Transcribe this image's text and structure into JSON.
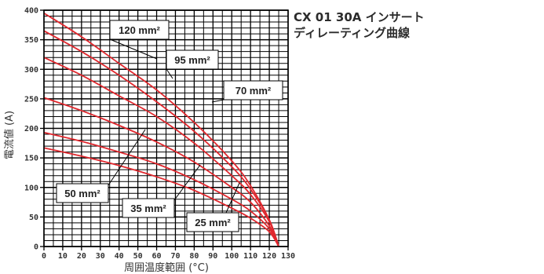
{
  "chart_data": {
    "type": "line",
    "title": [
      "CX 01 30A インサート",
      "ディレーティング曲線"
    ],
    "xlabel": "周囲温度範囲 (°C)",
    "ylabel": "電流値 (A)",
    "xlim": [
      0,
      130
    ],
    "ylim": [
      0,
      400
    ],
    "x_ticks": [
      0,
      10,
      20,
      30,
      40,
      50,
      60,
      70,
      80,
      90,
      100,
      110,
      120,
      130
    ],
    "y_ticks": [
      0,
      50,
      100,
      150,
      200,
      250,
      300,
      350,
      400
    ],
    "grid": true,
    "series": [
      {
        "name": "120 mm²",
        "x": [
          0,
          20,
          40,
          60,
          80,
          100,
          110,
          120,
          125
        ],
        "y": [
          395,
          355,
          310,
          265,
          210,
          145,
          103,
          45,
          0
        ]
      },
      {
        "name": "95 mm²",
        "x": [
          0,
          20,
          40,
          60,
          80,
          100,
          110,
          120,
          125
        ],
        "y": [
          365,
          330,
          290,
          245,
          195,
          135,
          97,
          45,
          0
        ]
      },
      {
        "name": "70 mm²",
        "x": [
          0,
          20,
          40,
          60,
          80,
          100,
          110,
          120,
          125
        ],
        "y": [
          320,
          290,
          255,
          220,
          175,
          120,
          88,
          42,
          0
        ]
      },
      {
        "name": "50 mm²",
        "x": [
          0,
          20,
          40,
          60,
          80,
          100,
          110,
          120,
          125
        ],
        "y": [
          252,
          230,
          205,
          177,
          143,
          100,
          75,
          35,
          0
        ]
      },
      {
        "name": "35 mm²",
        "x": [
          0,
          20,
          40,
          60,
          80,
          100,
          110,
          120,
          125
        ],
        "y": [
          193,
          178,
          160,
          140,
          113,
          80,
          60,
          30,
          0
        ]
      },
      {
        "name": "25 mm²",
        "x": [
          0,
          20,
          40,
          60,
          80,
          100,
          110,
          120,
          125
        ],
        "y": [
          167,
          153,
          137,
          118,
          95,
          65,
          48,
          25,
          0
        ]
      }
    ],
    "line_color": "#e0282e",
    "label_boxes": [
      {
        "text": "120 mm²",
        "series": "120 mm²"
      },
      {
        "text": "95 mm²",
        "series": "95 mm²"
      },
      {
        "text": "70 mm²",
        "series": "70 mm²"
      },
      {
        "text": "50 mm²",
        "series": "50 mm²"
      },
      {
        "text": "35 mm²",
        "series": "35 mm²"
      },
      {
        "text": "25 mm²",
        "series": "25 mm²"
      }
    ]
  }
}
